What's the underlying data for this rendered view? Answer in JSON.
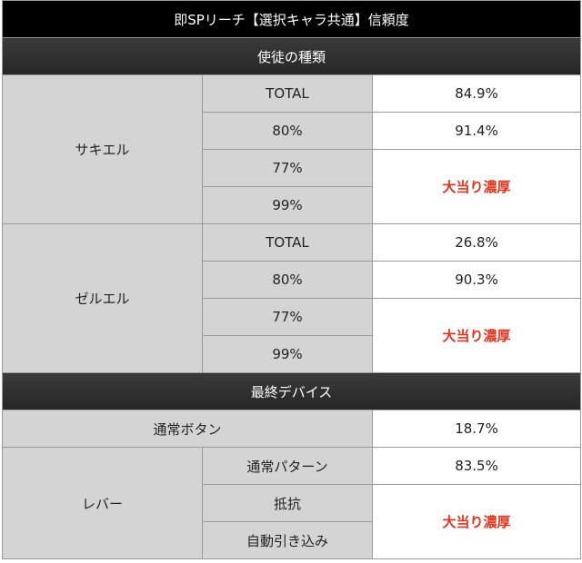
{
  "title": "即SPリーチ【選択キャラ共通】信頼度",
  "sections": {
    "apostle": "使徒の種類",
    "device": "最終デバイス"
  },
  "sakiel": {
    "name": "サキエル",
    "rows": [
      {
        "label": "TOTAL",
        "value": "84.9%"
      },
      {
        "label": "80%",
        "value": "91.4%"
      },
      {
        "label": "77%"
      },
      {
        "label": "99%"
      }
    ],
    "merged_value": "大当り濃厚"
  },
  "zeruel": {
    "name": "ゼルエル",
    "rows": [
      {
        "label": "TOTAL",
        "value": "26.8%"
      },
      {
        "label": "80%",
        "value": "90.3%"
      },
      {
        "label": "77%"
      },
      {
        "label": "99%"
      }
    ],
    "merged_value": "大当り濃厚"
  },
  "normal_button": {
    "label": "通常ボタン",
    "value": "18.7%"
  },
  "lever": {
    "name": "レバー",
    "rows": [
      {
        "label": "通常パターン",
        "value": "83.5%"
      },
      {
        "label": "抵抗"
      },
      {
        "label": "自動引き込み"
      }
    ],
    "merged_value": "大当り濃厚"
  },
  "colors": {
    "header_bg": "#000000",
    "section_bg": "#2f2f2f",
    "label_bg": "#d4d4d4",
    "highlight_text": "#e3341e"
  }
}
